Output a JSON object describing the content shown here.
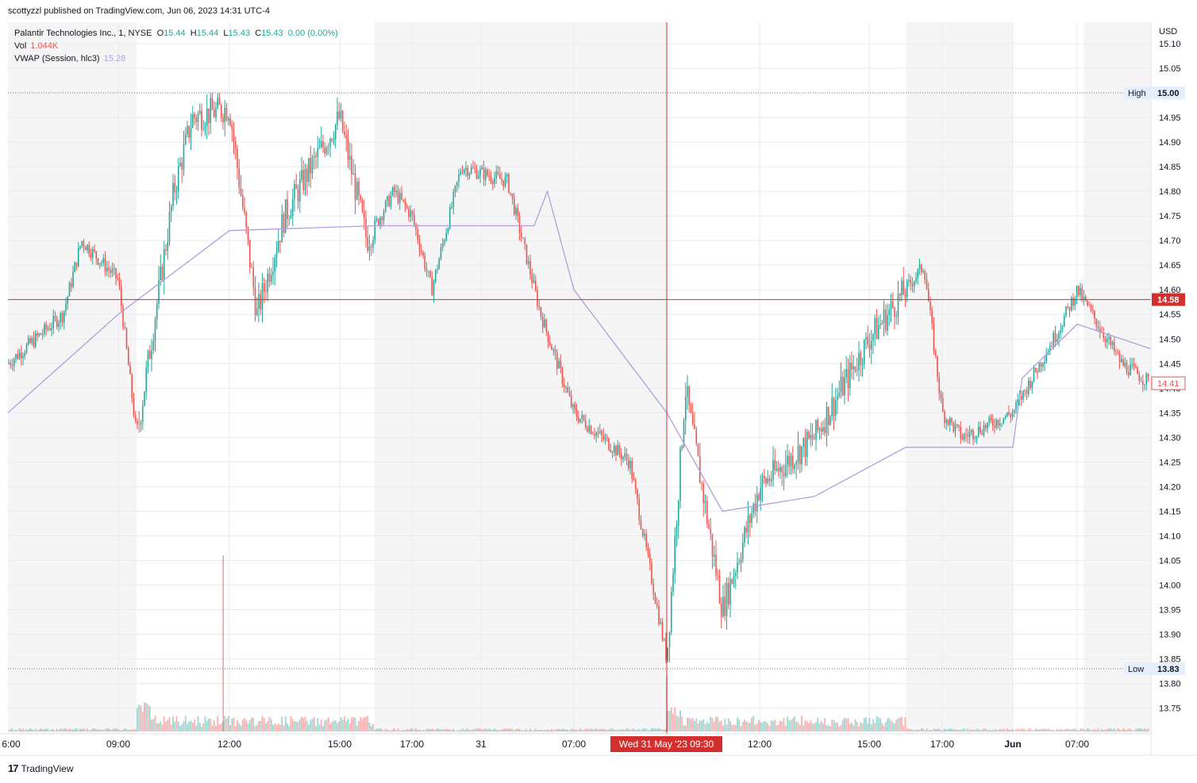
{
  "header": {
    "published": "scottyzzl published on TradingView.com, Jun 06, 2023 14:31 UTC-4"
  },
  "legend": {
    "symbol": "Palantir Technologies Inc., 1, NYSE",
    "open_label": "O",
    "open": "15.44",
    "high_label": "H",
    "high": "15.44",
    "low_label": "L",
    "low": "15.43",
    "close_label": "C",
    "close": "15.43",
    "change": "0.00 (0.00%)",
    "vol_label": "Vol",
    "vol": "1.044K",
    "vwap_label": "VWAP (Session, hlc3)",
    "vwap": "15.28"
  },
  "price_axis": {
    "currency": "USD",
    "ticks": [
      "15.10",
      "15.05",
      "15.00",
      "14.95",
      "14.90",
      "14.85",
      "14.80",
      "14.75",
      "14.70",
      "14.65",
      "14.60",
      "14.55",
      "14.50",
      "14.45",
      "14.40",
      "14.35",
      "14.30",
      "14.25",
      "14.20",
      "14.15",
      "14.10",
      "14.05",
      "14.00",
      "13.95",
      "13.90",
      "13.85",
      "13.80",
      "13.75"
    ],
    "high_label": "High",
    "high_value": "15.00",
    "low_label": "Low",
    "low_value": "13.83",
    "crosshair_value": "14.58",
    "last_value": "14.41"
  },
  "time_axis": {
    "ticks": [
      "6:00",
      "09:00",
      "12:00",
      "15:00",
      "17:00",
      "31",
      "07:00",
      "12:00",
      "15:00",
      "17:00",
      "Jun",
      "07:00"
    ],
    "crosshair_label": "Wed 31 May '23  09:30"
  },
  "footer": {
    "brand_mark": "17",
    "brand": "TradingView"
  },
  "colors": {
    "up": "#26a69a",
    "down": "#ef5350",
    "vwap": "#b39ddb",
    "crosshair": "#d32f2f",
    "grid": "#e8ebf0",
    "session_shade": "#f5f5f5"
  },
  "chart_data": {
    "type": "candlestick",
    "symbol": "PLTR",
    "interval": "1",
    "ylim": [
      13.72,
      15.12
    ],
    "grid": true,
    "overlays": [
      "VWAP (Session, hlc3)",
      "Volume"
    ],
    "price_path": [
      [
        "6:00",
        14.45
      ],
      [
        "07:30",
        14.55
      ],
      [
        "08:00",
        14.7
      ],
      [
        "09:00",
        14.62
      ],
      [
        "09:30",
        14.3
      ],
      [
        "10:30",
        14.8
      ],
      [
        "11:00",
        14.95
      ],
      [
        "12:00",
        14.97
      ],
      [
        "12:45",
        14.55
      ],
      [
        "13:30",
        14.75
      ],
      [
        "14:00",
        14.82
      ],
      [
        "15:00",
        14.95
      ],
      [
        "15:45",
        14.7
      ],
      [
        "16:30",
        14.8
      ],
      [
        "17:00",
        14.75
      ],
      [
        "19:00",
        14.6
      ],
      [
        "22:00",
        14.85
      ],
      [
        "31 02:00",
        14.82
      ],
      [
        "31 04:30",
        14.55
      ],
      [
        "31 07:00",
        14.35
      ],
      [
        "31 08:30",
        14.25
      ],
      [
        "31 09:30",
        13.85
      ],
      [
        "31 10:00",
        14.4
      ],
      [
        "31 11:00",
        13.95
      ],
      [
        "31 12:00",
        14.2
      ],
      [
        "31 13:30",
        14.3
      ],
      [
        "31 15:00",
        14.5
      ],
      [
        "31 16:30",
        14.65
      ],
      [
        "31 17:00",
        14.35
      ],
      [
        "31 19:00",
        14.3
      ],
      [
        "Jun 00:00",
        14.35
      ],
      [
        "Jun 05:00",
        14.52
      ],
      [
        "Jun 07:00",
        14.6
      ],
      [
        "Jun 08:30",
        14.45
      ],
      [
        "Jun 09:30",
        14.41
      ]
    ],
    "vwap_path": [
      [
        "6:00",
        14.35
      ],
      [
        "09:00",
        14.55
      ],
      [
        "12:00",
        14.72
      ],
      [
        "16:00",
        14.73
      ],
      [
        "31 04:00",
        14.73
      ],
      [
        "31 05:00",
        14.8
      ],
      [
        "31 07:00",
        14.6
      ],
      [
        "31 09:30",
        14.35
      ],
      [
        "31 11:00",
        14.15
      ],
      [
        "31 13:30",
        14.18
      ],
      [
        "31 16:00",
        14.28
      ],
      [
        "Jun 00:00",
        14.28
      ],
      [
        "Jun 01:00",
        14.42
      ],
      [
        "Jun 07:00",
        14.53
      ],
      [
        "Jun 09:30",
        14.48
      ]
    ],
    "high": 15.0,
    "low": 13.83,
    "crosshair": {
      "time": "Wed 31 May '23 09:30",
      "price": 14.58
    },
    "last": 14.41,
    "volume_spikes": [
      [
        "11:50",
        "high"
      ],
      [
        "31 09:30",
        "medium"
      ]
    ]
  }
}
